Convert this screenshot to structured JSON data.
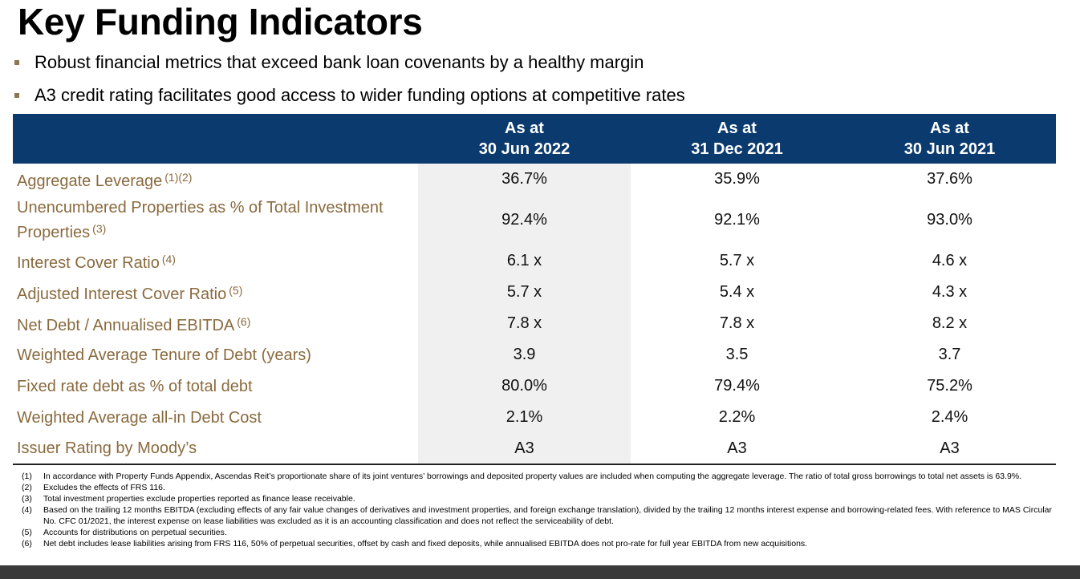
{
  "title": "Key Funding Indicators",
  "bullets": [
    "Robust financial metrics that exceed bank loan covenants by a healthy margin",
    "A3 credit rating facilitates good access to wider funding options at competitive rates"
  ],
  "table": {
    "columns": [
      {
        "line1": "As at",
        "line2": "30 Jun 2022"
      },
      {
        "line1": "As at",
        "line2": "31 Dec 2021"
      },
      {
        "line1": "As at",
        "line2": "30 Jun 2021"
      }
    ],
    "rows": [
      {
        "label": "Aggregate Leverage",
        "sup": "(1)(2)",
        "values": [
          "36.7%",
          "35.9%",
          "37.6%"
        ]
      },
      {
        "label": "Unencumbered Properties as % of Total Investment",
        "label2": "Properties",
        "sup": "(3)",
        "values": [
          "92.4%",
          "92.1%",
          "93.0%"
        ]
      },
      {
        "label": "Interest Cover Ratio",
        "sup": "(4)",
        "values": [
          "6.1 x",
          "5.7 x",
          "4.6 x"
        ]
      },
      {
        "label": "Adjusted Interest Cover Ratio",
        "sup": "(5)",
        "values": [
          "5.7 x",
          "5.4 x",
          "4.3 x"
        ]
      },
      {
        "label": "Net Debt / Annualised EBITDA",
        "sup": "(6)",
        "values": [
          "7.8 x",
          "7.8 x",
          "8.2 x"
        ]
      },
      {
        "label": "Weighted Average Tenure of Debt (years)",
        "sup": "",
        "values": [
          "3.9",
          "3.5",
          "3.7"
        ]
      },
      {
        "label": "Fixed rate debt as % of total debt",
        "sup": "",
        "values": [
          "80.0%",
          "79.4%",
          "75.2%"
        ]
      },
      {
        "label": "Weighted Average all-in Debt Cost",
        "sup": "",
        "values": [
          "2.1%",
          "2.2%",
          "2.4%"
        ]
      },
      {
        "label": "Issuer Rating by Moody’s",
        "sup": "",
        "values": [
          "A3",
          "A3",
          "A3"
        ]
      }
    ]
  },
  "footnotes": [
    {
      "num": "(1)",
      "text": "In accordance with Property Funds Appendix, Ascendas Reit’s proportionate share of its joint ventures’ borrowings and deposited property values are included when computing the aggregate leverage. The ratio of total gross borrowings to total net assets is 63.9%."
    },
    {
      "num": "(2)",
      "text": "Excludes the effects of FRS 116."
    },
    {
      "num": "(3)",
      "text": "Total investment properties exclude properties reported as finance lease receivable."
    },
    {
      "num": "(4)",
      "text": "Based on the trailing 12 months EBITDA (excluding effects of any fair value changes of derivatives and investment properties, and foreign exchange translation), divided by the trailing 12 months interest expense and borrowing-related fees. With reference to MAS Circular No. CFC 01/2021, the interest expense on lease liabilities was excluded as it is an accounting classification and does not reflect the serviceability of debt."
    },
    {
      "num": "(5)",
      "text": "Accounts for distributions on perpetual securities."
    },
    {
      "num": "(6)",
      "text": "Net debt includes lease liabilities arising from FRS 116, 50% of perpetual securities, offset by cash and fixed deposits, while annualised EBITDA does not pro-rate for full year EBITDA from new acquisitions."
    }
  ],
  "colors": {
    "header_bg": "#0b3b6e",
    "label_color": "#8a6a3e",
    "highlight_col": "#f0f0f0",
    "bullet": "#8a7652"
  }
}
